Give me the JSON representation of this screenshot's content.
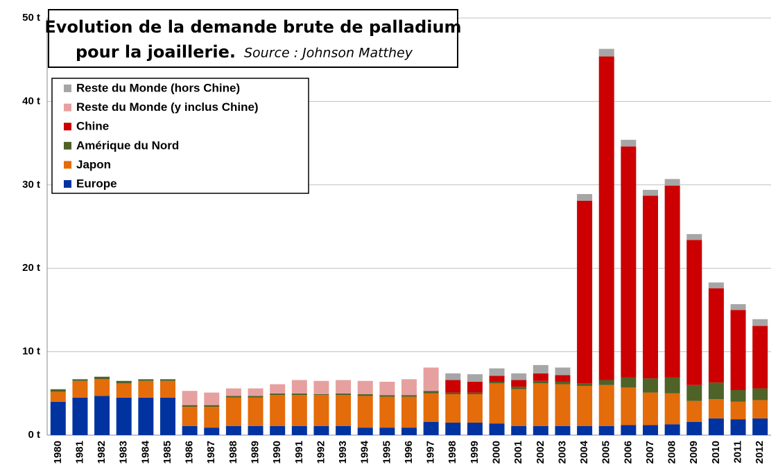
{
  "chart_data": {
    "type": "stacked_bar",
    "title": "Evolution de la demande brute de palladium",
    "title_line2": "pour la joaillerie.",
    "source": "Source : Johnson Matthey",
    "categories": [
      "1980",
      "1981",
      "1982",
      "1983",
      "1984",
      "1985",
      "1986",
      "1987",
      "1988",
      "1989",
      "1990",
      "1991",
      "1992",
      "1993",
      "1994",
      "1995",
      "1996",
      "1997",
      "1998",
      "1999",
      "2000",
      "2001",
      "2002",
      "2003",
      "2004",
      "2005",
      "2006",
      "2007",
      "2008",
      "2009",
      "2010",
      "2011",
      "2012"
    ],
    "series": [
      {
        "name": "Europe",
        "color": "#0033a0",
        "values": [
          4.0,
          4.5,
          4.7,
          4.5,
          4.5,
          4.5,
          1.1,
          0.9,
          1.1,
          1.1,
          1.1,
          1.1,
          1.1,
          1.1,
          0.9,
          0.9,
          0.9,
          1.6,
          1.5,
          1.5,
          1.4,
          1.1,
          1.1,
          1.1,
          1.1,
          1.1,
          1.2,
          1.2,
          1.3,
          1.6,
          2.0,
          1.9,
          2.0
        ]
      },
      {
        "name": "Japon",
        "color": "#e46c0a",
        "values": [
          1.2,
          2.0,
          2.0,
          1.7,
          2.0,
          2.0,
          2.3,
          2.5,
          3.4,
          3.4,
          3.7,
          3.7,
          3.7,
          3.7,
          3.8,
          3.7,
          3.7,
          3.4,
          3.4,
          3.4,
          4.8,
          4.4,
          5.1,
          5.0,
          4.8,
          4.9,
          4.5,
          3.9,
          3.7,
          2.5,
          2.3,
          2.1,
          2.2
        ]
      },
      {
        "name": "Amérique du Nord",
        "color": "#4f6228",
        "values": [
          0.3,
          0.2,
          0.3,
          0.3,
          0.2,
          0.2,
          0.2,
          0.2,
          0.2,
          0.2,
          0.2,
          0.2,
          0.1,
          0.2,
          0.2,
          0.2,
          0.2,
          0.3,
          0.2,
          0.2,
          0.2,
          0.3,
          0.3,
          0.3,
          0.3,
          0.6,
          1.2,
          1.7,
          1.9,
          1.9,
          2.0,
          1.4,
          1.4
        ]
      },
      {
        "name": "Chine",
        "color": "#cc0000",
        "values": [
          0,
          0,
          0,
          0,
          0,
          0,
          0,
          0,
          0,
          0,
          0,
          0,
          0,
          0,
          0,
          0,
          0,
          0,
          1.5,
          1.3,
          0.7,
          0.8,
          0.9,
          0.8,
          21.9,
          38.8,
          27.7,
          21.9,
          23.0,
          17.4,
          11.3,
          9.6,
          7.5
        ]
      },
      {
        "name": "Reste du Monde (y inclus Chine)",
        "color": "#e6a0a0",
        "values": [
          0,
          0,
          0,
          0,
          0,
          0,
          1.7,
          1.5,
          0.9,
          0.9,
          1.1,
          1.6,
          1.6,
          1.6,
          1.6,
          1.6,
          1.9,
          2.8,
          0,
          0,
          0,
          0,
          0,
          0,
          0,
          0,
          0,
          0,
          0,
          0,
          0,
          0,
          0
        ]
      },
      {
        "name": "Reste du Monde (hors Chine)",
        "color": "#a6a6a6",
        "values": [
          0,
          0,
          0,
          0,
          0,
          0,
          0,
          0,
          0,
          0,
          0,
          0,
          0,
          0,
          0,
          0,
          0,
          0,
          0.8,
          0.9,
          0.9,
          0.8,
          1.0,
          0.9,
          0.8,
          0.9,
          0.8,
          0.7,
          0.8,
          0.7,
          0.7,
          0.7,
          0.8
        ]
      }
    ],
    "ylim": [
      0,
      50
    ],
    "yticks": [
      {
        "value": 0,
        "label": "0 t"
      },
      {
        "value": 10,
        "label": "10 t"
      },
      {
        "value": 20,
        "label": "20 t"
      },
      {
        "value": 30,
        "label": "30 t"
      },
      {
        "value": 40,
        "label": "40 t"
      },
      {
        "value": 50,
        "label": "50 t"
      }
    ],
    "grid": true
  }
}
